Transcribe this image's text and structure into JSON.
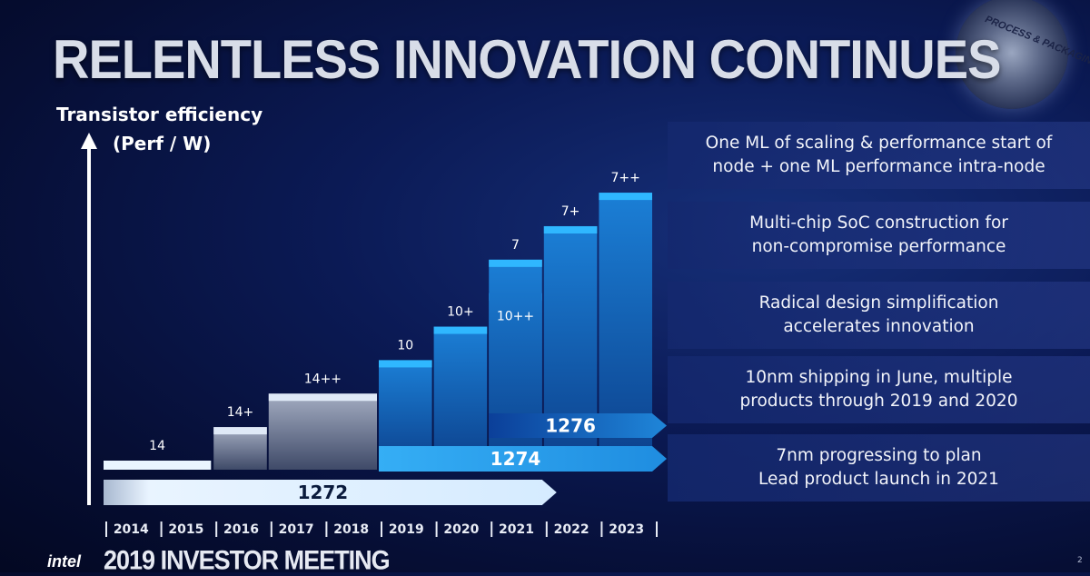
{
  "title": "RELENTLESS INNOVATION CONTINUES",
  "badge": "PROCESS & PACKAGING",
  "y_axis_label": [
    "Transistor efficiency",
    "(Perf / W)"
  ],
  "chart_data": {
    "type": "bar",
    "x_axis": {
      "categories": [
        "2014",
        "2015",
        "2016",
        "2017",
        "2018",
        "2019",
        "2020",
        "2021",
        "2022",
        "2023"
      ]
    },
    "y_axis": {
      "label": "Transistor efficiency (Perf / W)",
      "tick_labels": false
    },
    "nodes": [
      {
        "label": "14",
        "year": "2015",
        "level": 1
      },
      {
        "label": "14+",
        "year": "2016",
        "level": 2
      },
      {
        "label": "14++",
        "year": "2017",
        "span_years": [
          "2017",
          "2018"
        ],
        "level": 3
      },
      {
        "label": "10",
        "year": "2019",
        "level": 4
      },
      {
        "label": "10+",
        "year": "2020",
        "level": 5
      },
      {
        "label": "10++",
        "year": "2021",
        "level": 6
      },
      {
        "label": "7",
        "year": "2021",
        "level": 7
      },
      {
        "label": "7+",
        "year": "2022",
        "level": 8
      },
      {
        "label": "7++",
        "year": "2023",
        "level": 9
      }
    ],
    "process_arrows": [
      {
        "label": "1272",
        "start": "2014",
        "end": "2021"
      },
      {
        "label": "1274",
        "start": "2019",
        "end": "2023"
      },
      {
        "label": "1276",
        "start": "2021",
        "end": "2023"
      }
    ]
  },
  "highlights": [
    "One ML of scaling & performance start of\nnode + one ML performance intra-node",
    "Multi-chip SoC construction for\nnon-compromise performance",
    "Radical design simplification\naccelerates innovation",
    "10nm shipping in June, multiple\nproducts through 2019 and 2020",
    "7nm progressing to plan\nLead product launch in 2021"
  ],
  "footer": {
    "logo": "intel",
    "event": "2019 INVESTOR MEETING",
    "page": "2"
  },
  "colors": {
    "bright_blue": "#1f8de0",
    "light_blue": "#cfe8ff",
    "cyan_top": "#2fb7ff",
    "background": "#0b1a55"
  }
}
